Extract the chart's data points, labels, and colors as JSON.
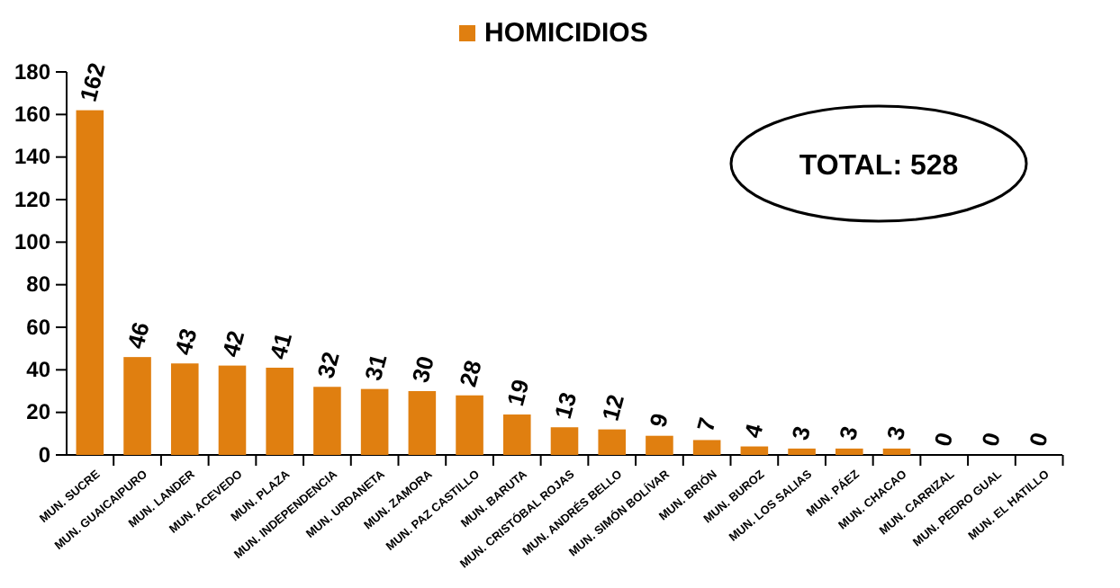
{
  "chart_data": {
    "type": "bar",
    "categories": [
      "MUN. SUCRE",
      "MUN. GUAICAIPURO",
      "MUN. LANDER",
      "MUN. ACEVEDO",
      "MUN. PLAZA",
      "MUN. INDEPENDENCIA",
      "MUN. URDANETA",
      "MUN. ZAMORA",
      "MUN. PAZ CASTILLO",
      "MUN. BARUTA",
      "MUN. CRISTÓBAL ROJAS",
      "MUN. ANDRÉS BELLO",
      "MUN. SIMÓN BOLÍVAR",
      "MUN. BRIÓN",
      "MUN. BUROZ",
      "MUN. LOS SALIAS",
      "MUN. PÁEZ",
      "MUN. CHACAO",
      "MUN. CARRIZAL",
      "MUN. PEDRO GUAL",
      "MUN. EL HATILLO"
    ],
    "series": [
      {
        "name": "HOMICIDIOS",
        "color": "#e07f10",
        "values": [
          162,
          46,
          43,
          42,
          41,
          32,
          31,
          30,
          28,
          19,
          13,
          12,
          9,
          7,
          4,
          3,
          3,
          3,
          0,
          0,
          0
        ]
      }
    ],
    "ylim": [
      0,
      180
    ],
    "yticks": [
      0,
      20,
      40,
      60,
      80,
      100,
      120,
      140,
      160,
      180
    ],
    "data_labels": true,
    "legend": "top",
    "grid": false,
    "annotations": [
      "TOTAL: 528"
    ]
  }
}
